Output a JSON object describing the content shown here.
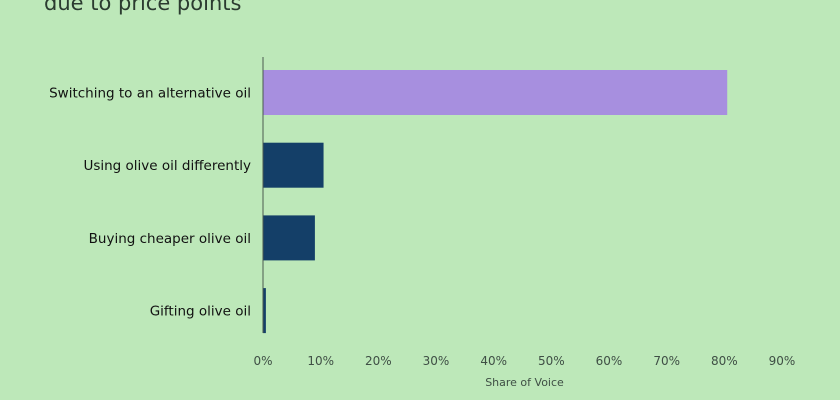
{
  "chart_data": {
    "type": "bar",
    "orientation": "horizontal",
    "title": "due to price points",
    "categories": [
      "Switching to an alternative oil",
      "Using olive oil differently",
      "Buying cheaper olive oil",
      "Gifting olive oil"
    ],
    "values": [
      80.5,
      10.5,
      9,
      0.5
    ],
    "colors": [
      "#a78fdf",
      "#143f68",
      "#143f68",
      "#143f68"
    ],
    "xlabel": "Share of Voice",
    "ylabel": "",
    "xlim": [
      0,
      90
    ],
    "xticks": [
      "0%",
      "10%",
      "20%",
      "30%",
      "40%",
      "50%",
      "60%",
      "70%",
      "80%",
      "90%"
    ],
    "grid": false,
    "legend": "none"
  }
}
